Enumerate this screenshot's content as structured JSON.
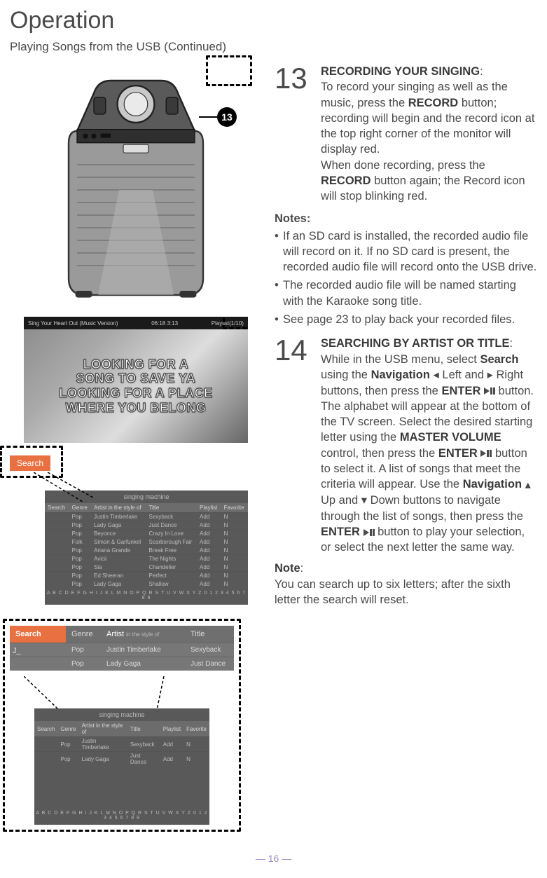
{
  "page_title": "Operation",
  "subtitle": "Playing Songs from the USB (Continued)",
  "callout_number": "13",
  "lyrics_bar": {
    "left": "Sing Your Heart Out (Music Version)",
    "time": "06:18   3:13",
    "right": "Playlist(1/10)"
  },
  "lyrics_lines": [
    "LOOKING FOR A",
    "SONG TO SAVE YA",
    "LOOKING FOR A PLACE",
    "WHERE YOU BELONG"
  ],
  "search_label": "Search",
  "table_header_title": "singing machine",
  "table_columns": [
    "Search",
    "Genre",
    "Artist in the style of",
    "Title",
    "Playlist",
    "Favorite"
  ],
  "table_rows": [
    [
      "Pop",
      "Justin Timberlake",
      "Sexyback",
      "Add",
      "N"
    ],
    [
      "Pop",
      "Lady Gaga",
      "Just Dance",
      "Add",
      "N"
    ],
    [
      "Pop",
      "Beyonce",
      "Crazy In Love",
      "Add",
      "N"
    ],
    [
      "Folk",
      "Simon & Garfunkel",
      "Scarborough Fair",
      "Add",
      "N"
    ],
    [
      "Pop",
      "Ariana Grande",
      "Break Free",
      "Add",
      "N"
    ],
    [
      "Pop",
      "Avicii",
      "The Nights",
      "Add",
      "N"
    ],
    [
      "Pop",
      "Sia",
      "Chandelier",
      "Add",
      "N"
    ],
    [
      "Pop",
      "Ed Sheeran",
      "Perfect",
      "Add",
      "N"
    ],
    [
      "Pop",
      "Lady Gaga",
      "Shallow",
      "Add",
      "N"
    ]
  ],
  "alphabet": "A B C D E F G H I J K L M N O P Q R S T U V W X Y Z 0 1 2 3 4 5 6 7 8 9",
  "band_columns": [
    "Search",
    "Genre",
    "Artist",
    "Title"
  ],
  "band_artist_sub": "in the style of",
  "band_rows": [
    [
      "",
      "Pop",
      "Justin Timberlake",
      "Sexyback"
    ],
    [
      "",
      "Pop",
      "Lady Gaga",
      "Just Dance"
    ]
  ],
  "band_prefix": "J_",
  "step13": {
    "num": "13",
    "title": "RECORDING YOUR SINGING",
    "body1": "To record your singing as well as the music, press the ",
    "bold1": "RECORD",
    "body2": " button; recording will begin and the record icon at the top right corner of the monitor will display red.",
    "body3": "When done recording, press the ",
    "bold2": "RECORD",
    "body4": " button again; the Record icon will stop blinking red."
  },
  "notes_label": "Notes",
  "notes": [
    "If an SD card is installed, the recorded audio file will record on it. If no SD card is present, the recorded audio file will record onto the USB drive.",
    "The recorded audio file will be named starting with the Karaoke song title.",
    "See page 23 to play back your recorded files."
  ],
  "step14": {
    "num": "14",
    "title": "SEARCHING BY ARTIST OR TITLE",
    "t1": "While in the USB menu, select ",
    "b_search": "Search",
    "t2": " using the ",
    "b_nav": "Navigation",
    "t3": " Left and ",
    "t4": " Right buttons, then press the ",
    "b_enter": "ENTER",
    "t5": " button. The alphabet will appear at the bottom of the TV screen. Select the desired starting letter using the ",
    "b_mv": "MASTER VOLUME",
    "t6": " control, then press the ",
    "t7": " button to select it. A list of songs that meet the criteria will appear. Use the ",
    "t8": " Up and ",
    "t9": " Down buttons to navigate through the list of songs, then press the ",
    "t10": " button to play your selection, or select the next letter the same way."
  },
  "note_label": "Note",
  "note_body": "You can search up to six letters; after the sixth letter the search will reset.",
  "page_number": "— 16 —"
}
